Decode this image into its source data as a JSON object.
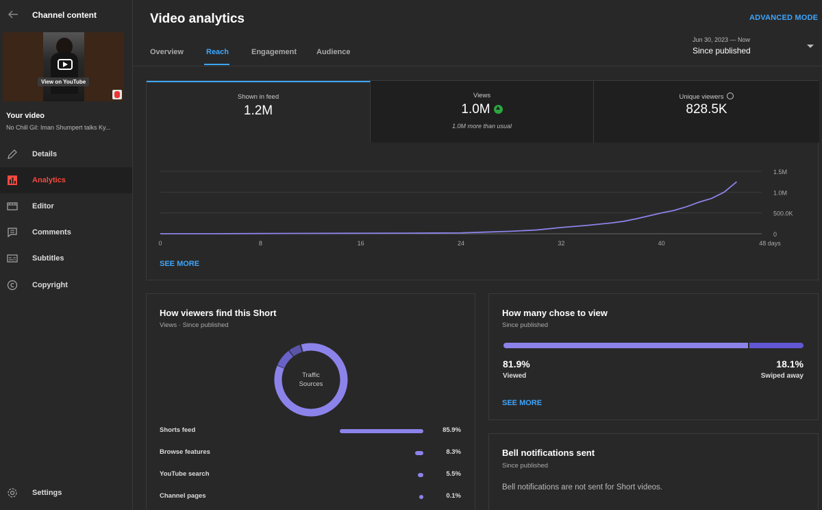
{
  "sidebar": {
    "title": "Channel content",
    "thumbnail_button": "View on YouTube",
    "your_video_label": "Your video",
    "video_title": "No Chill Gil: Iman Shumpert talks Ky...",
    "items": [
      {
        "label": "Details",
        "icon": "pencil-icon"
      },
      {
        "label": "Analytics",
        "icon": "analytics-icon",
        "active": true
      },
      {
        "label": "Editor",
        "icon": "film-icon"
      },
      {
        "label": "Comments",
        "icon": "comment-icon"
      },
      {
        "label": "Subtitles",
        "icon": "subtitles-icon"
      },
      {
        "label": "Copyright",
        "icon": "copyright-icon"
      }
    ],
    "settings_label": "Settings"
  },
  "header": {
    "title": "Video analytics",
    "advanced_mode": "ADVANCED MODE",
    "tabs": [
      "Overview",
      "Reach",
      "Engagement",
      "Audience"
    ],
    "active_tab": "Reach",
    "date_range": "Jun 30, 2023 — Now",
    "date_label": "Since published"
  },
  "reach": {
    "metrics": [
      {
        "label": "Shown in feed",
        "value": "1.2M"
      },
      {
        "label": "Views",
        "value": "1.0M",
        "note": "1.0M more than usual"
      },
      {
        "label": "Unique viewers",
        "value": "828.5K"
      }
    ],
    "see_more": "SEE MORE"
  },
  "chart_data": {
    "type": "line",
    "x": [
      0,
      4,
      8,
      11,
      16,
      20,
      24,
      26,
      28,
      30,
      32,
      34,
      36,
      37,
      38,
      39,
      40,
      41,
      42,
      43,
      44,
      45,
      46
    ],
    "values": [
      0,
      0,
      5000,
      8000,
      12000,
      15000,
      20000,
      40000,
      60000,
      90000,
      150000,
      200000,
      260000,
      300000,
      360000,
      430000,
      500000,
      560000,
      650000,
      760000,
      850000,
      1000000,
      1250000
    ],
    "x_ticks": [
      "0",
      "8",
      "16",
      "24",
      "32",
      "40",
      "48 days"
    ],
    "y_ticks": [
      "0",
      "500.0K",
      "1.0M",
      "1.5M"
    ],
    "xlim": [
      0,
      48
    ],
    "ylim": [
      0,
      1500000
    ],
    "color": "#8c83ea",
    "grid": true
  },
  "traffic": {
    "title": "How viewers find this Short",
    "subtitle": "Views · Since published",
    "donut_center_line1": "Traffic",
    "donut_center_line2": "Sources",
    "sources": [
      {
        "label": "Shorts feed",
        "pct": "85.9%",
        "value": 85.9
      },
      {
        "label": "Browse features",
        "pct": "8.3%",
        "value": 8.3
      },
      {
        "label": "YouTube search",
        "pct": "5.5%",
        "value": 5.5
      },
      {
        "label": "Channel pages",
        "pct": "0.1%",
        "value": 0.1
      }
    ]
  },
  "chose_to_view": {
    "title": "How many chose to view",
    "subtitle": "Since published",
    "viewed_pct": "81.9%",
    "viewed_label": "Viewed",
    "viewed_value": 81.9,
    "swiped_pct": "18.1%",
    "swiped_label": "Swiped away",
    "swiped_value": 18.1,
    "see_more": "SEE MORE"
  },
  "bell": {
    "title": "Bell notifications sent",
    "subtitle": "Since published",
    "message": "Bell notifications are not sent for Short videos."
  },
  "colors": {
    "accent": "#3ea6ff",
    "active_nav": "#f34a3e",
    "chart": "#8c83ea",
    "swiped": "#6157d2",
    "up": "#2ba640"
  }
}
